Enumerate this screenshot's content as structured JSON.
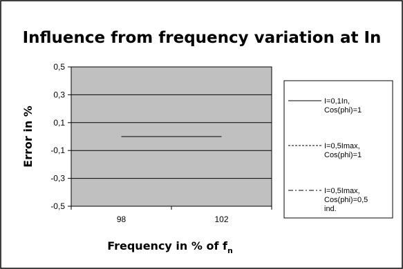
{
  "chart_data": {
    "type": "line",
    "title": "Influence from frequency variation at In",
    "xlabel": "Frequency in % of f",
    "xlabel_subscript": "n",
    "ylabel": "Error in %",
    "categories": [
      "98",
      "102"
    ],
    "ylim": [
      -0.5,
      0.5
    ],
    "yticks": [
      0.5,
      0.3,
      0.1,
      -0.1,
      -0.3,
      -0.5
    ],
    "ytick_labels": [
      "0,5",
      "0,3",
      "0,1",
      "-0,1",
      "-0,3",
      "-0,5"
    ],
    "grid": true,
    "legend_position": "right",
    "series": [
      {
        "name": "I=0,1In, Cos(phi)=1",
        "name_lines": [
          "I=0,1In,",
          "Cos(phi)=1"
        ],
        "values": [
          0,
          0
        ],
        "dash": "solid"
      },
      {
        "name": "I=0,5Imax, Cos(phi)=1",
        "name_lines": [
          "I=0,5Imax,",
          "Cos(phi)=1"
        ],
        "values": [
          0,
          0
        ],
        "dash": "dashed"
      },
      {
        "name": "I=0,5Imax, Cos(phi)=0,5 ind.",
        "name_lines": [
          "I=0,5Imax,",
          "Cos(phi)=0,5",
          "ind."
        ],
        "values": [
          0,
          0
        ],
        "dash": "dashdot"
      }
    ]
  }
}
